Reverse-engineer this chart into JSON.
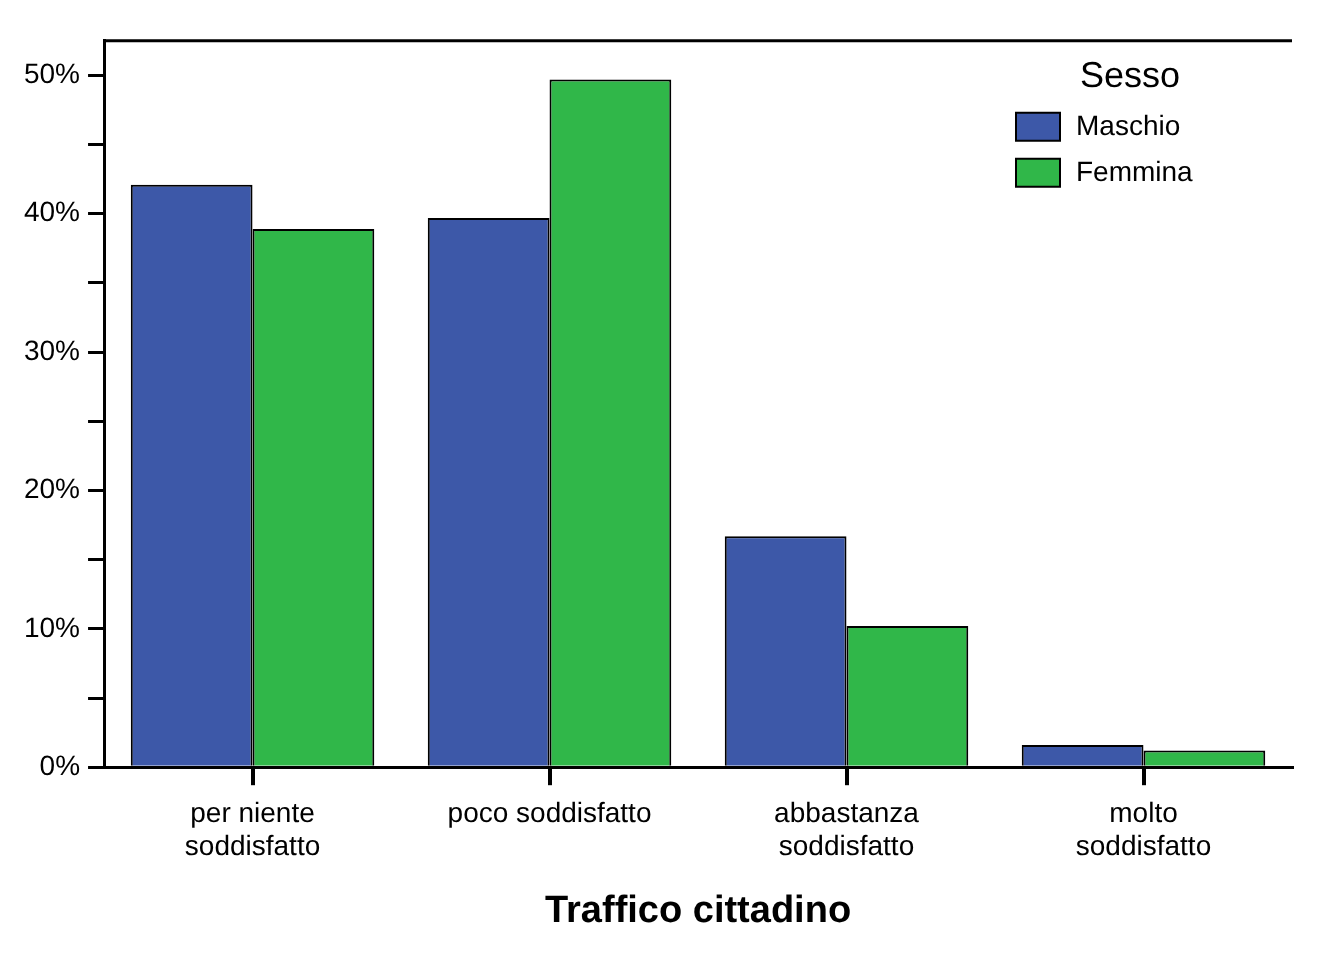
{
  "chart_data": {
    "type": "bar",
    "xlabel": "Traffico cittadino",
    "legend_title": "Sesso",
    "legend": "top right",
    "categories": [
      "per niente\nsoddisfatto",
      "poco soddisfatto",
      "abbastanza\nsoddisfatto",
      "molto\nsoddisfatto"
    ],
    "series": [
      {
        "name": "Maschio",
        "color": "#3d58a8",
        "values": [
          42.1,
          39.7,
          16.7,
          1.6
        ]
      },
      {
        "name": "Femmina",
        "color": "#30b749",
        "values": [
          38.9,
          49.7,
          10.2,
          1.2
        ]
      }
    ],
    "ylim": [
      0,
      52.5
    ],
    "yticks": [
      {
        "value": 0,
        "label": "0%"
      },
      {
        "value": 5,
        "label": null
      },
      {
        "value": 10,
        "label": "10%"
      },
      {
        "value": 15,
        "label": null
      },
      {
        "value": 20,
        "label": "20%"
      },
      {
        "value": 25,
        "label": null
      },
      {
        "value": 30,
        "label": "30%"
      },
      {
        "value": 35,
        "label": null
      },
      {
        "value": 40,
        "label": "40%"
      },
      {
        "value": 45,
        "label": null
      },
      {
        "value": 50,
        "label": "50%"
      }
    ]
  }
}
